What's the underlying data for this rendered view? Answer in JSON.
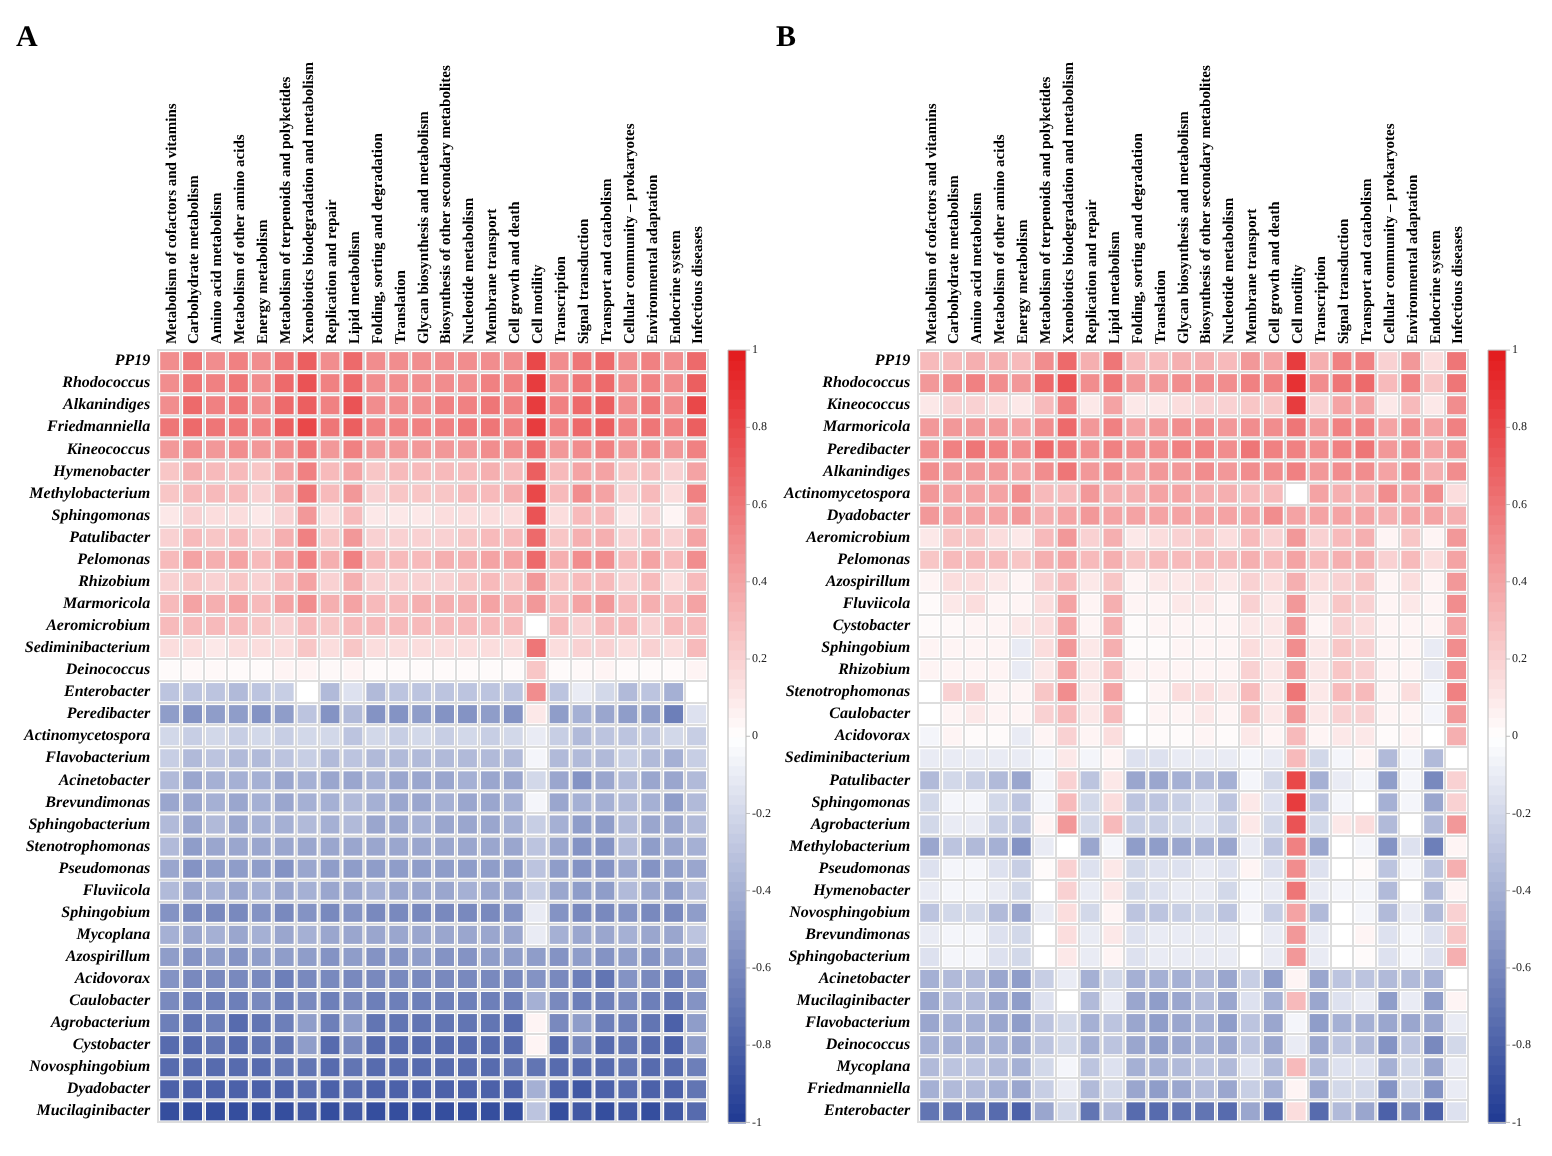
{
  "chart_data": [
    {
      "type": "heatmap",
      "title": "A",
      "clim": [
        -1,
        1
      ],
      "cticks": [
        1,
        0.8,
        0.6,
        0.4,
        0.2,
        0,
        -0.2,
        -0.4,
        -0.6,
        -0.8,
        -1
      ],
      "categories": [
        "Metabolism of cofactors and vitamins",
        "Carbohydrate metabolism",
        "Amino acid metabolism",
        "Metabolism of other amino acids",
        "Energy metabolism",
        "Metabolism of terpenoids and polyketides",
        "Xenobiotics biodegradation and metabolism",
        "Replication and repair",
        "Lipid metabolism",
        "Folding, sorting and degradation",
        "Translation",
        "Glycan biosynthesis and metabolism",
        "Biosynthesis of other secondary metabolites",
        "Nucleotide metabolism",
        "Membrane transport",
        "Cell growth and death",
        "Cell motility",
        "Transcription",
        "Signal transduction",
        "Transport and catabolism",
        "Cellular community – prokaryotes",
        "Environmental adaptation",
        "Endocrine system",
        "Infectious diseases"
      ],
      "y_categories": [
        "PP19",
        "Rhodococcus",
        "Alkanindiges",
        "Friedmanniella",
        "Kineococcus",
        "Hymenobacter",
        "Methylobacterium",
        "Sphingomonas",
        "Patulibacter",
        "Pelomonas",
        "Rhizobium",
        "Marmoricola",
        "Aeromicrobium",
        "Sediminibacterium",
        "Deinococcus",
        "Enterobacter",
        "Peredibacter",
        "Actinomycetospora",
        "Flavobacterium",
        "Acinetobacter",
        "Brevundimonas",
        "Sphingobacterium",
        "Stenotrophomonas",
        "Pseudomonas",
        "Fluviicola",
        "Sphingobium",
        "Mycoplana",
        "Azospirillum",
        "Acidovorax",
        "Caulobacter",
        "Agrobacterium",
        "Cystobacter",
        "Novosphingobium",
        "Dyadobacter",
        "Mucilaginibacter"
      ],
      "cells": [
        [
          0.5,
          0.6,
          0.5,
          0.55,
          0.5,
          0.6,
          0.7,
          0.5,
          0.65,
          0.5,
          0.5,
          0.5,
          0.5,
          0.5,
          0.5,
          0.5,
          0.8,
          0.5,
          0.6,
          0.65,
          0.5,
          0.55,
          0.5,
          0.65
        ],
        [
          0.5,
          0.6,
          0.55,
          0.6,
          0.5,
          0.65,
          0.75,
          0.55,
          0.65,
          0.5,
          0.5,
          0.5,
          0.5,
          0.5,
          0.55,
          0.55,
          0.85,
          0.5,
          0.6,
          0.65,
          0.5,
          0.55,
          0.5,
          0.7
        ],
        [
          0.5,
          0.65,
          0.55,
          0.6,
          0.5,
          0.65,
          0.7,
          0.55,
          0.75,
          0.5,
          0.5,
          0.5,
          0.55,
          0.55,
          0.6,
          0.55,
          0.85,
          0.55,
          0.65,
          0.7,
          0.5,
          0.6,
          0.5,
          0.8
        ],
        [
          0.6,
          0.65,
          0.6,
          0.6,
          0.55,
          0.7,
          0.8,
          0.6,
          0.7,
          0.55,
          0.55,
          0.55,
          0.55,
          0.6,
          0.6,
          0.55,
          0.85,
          0.55,
          0.65,
          0.7,
          0.55,
          0.6,
          0.55,
          0.7
        ],
        [
          0.45,
          0.5,
          0.45,
          0.5,
          0.45,
          0.5,
          0.6,
          0.45,
          0.55,
          0.45,
          0.45,
          0.45,
          0.45,
          0.45,
          0.5,
          0.5,
          0.65,
          0.45,
          0.5,
          0.55,
          0.45,
          0.5,
          0.45,
          0.55
        ],
        [
          0.25,
          0.35,
          0.3,
          0.3,
          0.25,
          0.4,
          0.55,
          0.3,
          0.4,
          0.25,
          0.3,
          0.3,
          0.3,
          0.3,
          0.35,
          0.3,
          0.7,
          0.3,
          0.4,
          0.4,
          0.25,
          0.3,
          0.2,
          0.4
        ],
        [
          0.25,
          0.3,
          0.3,
          0.3,
          0.2,
          0.35,
          0.6,
          0.3,
          0.45,
          0.2,
          0.25,
          0.25,
          0.25,
          0.3,
          0.3,
          0.35,
          0.8,
          0.3,
          0.5,
          0.4,
          0.2,
          0.3,
          0.15,
          0.55
        ],
        [
          0.1,
          0.2,
          0.15,
          0.15,
          0.1,
          0.2,
          0.45,
          0.15,
          0.3,
          0.1,
          0.1,
          0.1,
          0.15,
          0.15,
          0.15,
          0.15,
          0.75,
          0.15,
          0.3,
          0.3,
          0.1,
          0.2,
          0.05,
          0.35
        ],
        [
          0.2,
          0.3,
          0.25,
          0.3,
          0.2,
          0.35,
          0.55,
          0.25,
          0.45,
          0.2,
          0.2,
          0.2,
          0.2,
          0.25,
          0.3,
          0.3,
          0.65,
          0.25,
          0.35,
          0.35,
          0.2,
          0.3,
          0.2,
          0.4
        ],
        [
          0.3,
          0.4,
          0.35,
          0.4,
          0.3,
          0.4,
          0.55,
          0.35,
          0.55,
          0.3,
          0.3,
          0.3,
          0.35,
          0.35,
          0.4,
          0.4,
          0.65,
          0.35,
          0.5,
          0.5,
          0.3,
          0.4,
          0.3,
          0.5
        ],
        [
          0.2,
          0.25,
          0.2,
          0.25,
          0.2,
          0.3,
          0.4,
          0.2,
          0.35,
          0.2,
          0.2,
          0.2,
          0.2,
          0.25,
          0.3,
          0.25,
          0.45,
          0.25,
          0.3,
          0.3,
          0.2,
          0.3,
          0.15,
          0.3
        ],
        [
          0.3,
          0.4,
          0.35,
          0.4,
          0.3,
          0.4,
          0.5,
          0.35,
          0.4,
          0.3,
          0.3,
          0.35,
          0.35,
          0.35,
          0.4,
          0.35,
          0.45,
          0.3,
          0.4,
          0.45,
          0.3,
          0.35,
          0.3,
          0.4
        ],
        [
          0.3,
          0.3,
          0.3,
          0.3,
          0.25,
          0.2,
          0.3,
          0.25,
          0.3,
          0.3,
          0.3,
          0.3,
          0.3,
          0.3,
          0.3,
          0.3,
          0,
          0.3,
          0.2,
          0.3,
          0.3,
          0.2,
          0.3,
          0.3
        ],
        [
          0.15,
          0.15,
          0.1,
          0.15,
          0.15,
          0.15,
          0.25,
          0.15,
          0.25,
          0.15,
          0.15,
          0.15,
          0.15,
          0.15,
          0.15,
          0.15,
          0.6,
          0.15,
          0.2,
          0.2,
          0.15,
          0.2,
          0.15,
          0.3
        ],
        [
          0.02,
          0.03,
          0.03,
          0.02,
          0.02,
          0.05,
          0.05,
          0.03,
          0.05,
          0.02,
          0.02,
          0.02,
          0.02,
          0.02,
          0.02,
          0.02,
          0.25,
          0.02,
          0.03,
          0.05,
          0.02,
          0.02,
          0.02,
          0.05
        ],
        [
          -0.3,
          -0.3,
          -0.3,
          -0.35,
          -0.3,
          -0.25,
          0,
          -0.35,
          -0.15,
          -0.35,
          -0.3,
          -0.3,
          -0.3,
          -0.3,
          -0.3,
          -0.3,
          0.5,
          -0.3,
          -0.1,
          -0.2,
          -0.35,
          -0.3,
          -0.4,
          0
        ],
        [
          -0.5,
          -0.55,
          -0.5,
          -0.5,
          -0.55,
          -0.5,
          -0.3,
          -0.55,
          -0.35,
          -0.55,
          -0.55,
          -0.5,
          -0.55,
          -0.55,
          -0.5,
          -0.55,
          0.1,
          -0.5,
          -0.4,
          -0.45,
          -0.5,
          -0.5,
          -0.65,
          -0.15
        ],
        [
          -0.2,
          -0.25,
          -0.2,
          -0.25,
          -0.2,
          -0.25,
          -0.2,
          -0.2,
          -0.3,
          -0.2,
          -0.25,
          -0.2,
          -0.25,
          -0.2,
          -0.25,
          -0.2,
          -0.1,
          -0.25,
          -0.35,
          -0.3,
          -0.3,
          -0.3,
          -0.2,
          -0.25
        ],
        [
          -0.25,
          -0.35,
          -0.3,
          -0.35,
          -0.35,
          -0.3,
          -0.25,
          -0.35,
          -0.3,
          -0.35,
          -0.35,
          -0.35,
          -0.35,
          -0.35,
          -0.35,
          -0.35,
          -0.05,
          -0.35,
          -0.35,
          -0.35,
          -0.25,
          -0.35,
          -0.4,
          -0.25
        ],
        [
          -0.35,
          -0.45,
          -0.4,
          -0.4,
          -0.4,
          -0.45,
          -0.4,
          -0.45,
          -0.45,
          -0.4,
          -0.45,
          -0.45,
          -0.45,
          -0.4,
          -0.45,
          -0.45,
          -0.2,
          -0.45,
          -0.55,
          -0.45,
          -0.35,
          -0.45,
          -0.45,
          -0.35
        ],
        [
          -0.45,
          -0.45,
          -0.4,
          -0.45,
          -0.4,
          -0.45,
          -0.4,
          -0.4,
          -0.35,
          -0.4,
          -0.45,
          -0.45,
          -0.4,
          -0.45,
          -0.45,
          -0.4,
          -0.05,
          -0.45,
          -0.4,
          -0.4,
          -0.35,
          -0.4,
          -0.5,
          -0.35
        ],
        [
          -0.35,
          -0.45,
          -0.35,
          -0.45,
          -0.4,
          -0.4,
          -0.35,
          -0.4,
          -0.35,
          -0.45,
          -0.45,
          -0.4,
          -0.45,
          -0.45,
          -0.45,
          -0.4,
          -0.25,
          -0.4,
          -0.5,
          -0.5,
          -0.35,
          -0.45,
          -0.45,
          -0.35
        ],
        [
          -0.35,
          -0.5,
          -0.45,
          -0.45,
          -0.45,
          -0.45,
          -0.45,
          -0.45,
          -0.45,
          -0.45,
          -0.45,
          -0.45,
          -0.45,
          -0.45,
          -0.45,
          -0.45,
          -0.3,
          -0.45,
          -0.55,
          -0.55,
          -0.35,
          -0.5,
          -0.45,
          -0.4
        ],
        [
          -0.45,
          -0.55,
          -0.5,
          -0.5,
          -0.5,
          -0.55,
          -0.45,
          -0.5,
          -0.5,
          -0.5,
          -0.5,
          -0.5,
          -0.5,
          -0.5,
          -0.5,
          -0.5,
          -0.3,
          -0.5,
          -0.55,
          -0.55,
          -0.45,
          -0.55,
          -0.5,
          -0.45
        ],
        [
          -0.35,
          -0.45,
          -0.4,
          -0.45,
          -0.4,
          -0.45,
          -0.4,
          -0.45,
          -0.45,
          -0.4,
          -0.45,
          -0.45,
          -0.45,
          -0.4,
          -0.45,
          -0.45,
          -0.25,
          -0.45,
          -0.5,
          -0.5,
          -0.35,
          -0.45,
          -0.5,
          -0.35
        ],
        [
          -0.55,
          -0.6,
          -0.6,
          -0.6,
          -0.55,
          -0.6,
          -0.55,
          -0.6,
          -0.55,
          -0.6,
          -0.6,
          -0.6,
          -0.6,
          -0.6,
          -0.6,
          -0.55,
          -0.1,
          -0.55,
          -0.6,
          -0.6,
          -0.55,
          -0.6,
          -0.6,
          -0.5
        ],
        [
          -0.4,
          -0.45,
          -0.4,
          -0.45,
          -0.4,
          -0.45,
          -0.4,
          -0.45,
          -0.45,
          -0.45,
          -0.45,
          -0.45,
          -0.45,
          -0.45,
          -0.45,
          -0.45,
          -0.1,
          -0.4,
          -0.45,
          -0.45,
          -0.4,
          -0.45,
          -0.45,
          -0.3
        ],
        [
          -0.5,
          -0.55,
          -0.5,
          -0.55,
          -0.5,
          -0.5,
          -0.5,
          -0.55,
          -0.5,
          -0.55,
          -0.55,
          -0.5,
          -0.55,
          -0.55,
          -0.5,
          -0.5,
          -0.5,
          -0.55,
          -0.5,
          -0.55,
          -0.5,
          -0.55,
          -0.5,
          -0.45
        ],
        [
          -0.55,
          -0.6,
          -0.6,
          -0.6,
          -0.6,
          -0.65,
          -0.6,
          -0.6,
          -0.6,
          -0.6,
          -0.6,
          -0.6,
          -0.6,
          -0.6,
          -0.6,
          -0.6,
          -0.55,
          -0.6,
          -0.65,
          -0.7,
          -0.55,
          -0.6,
          -0.65,
          -0.55
        ],
        [
          -0.6,
          -0.65,
          -0.65,
          -0.65,
          -0.6,
          -0.65,
          -0.6,
          -0.65,
          -0.6,
          -0.65,
          -0.65,
          -0.65,
          -0.65,
          -0.65,
          -0.65,
          -0.65,
          -0.4,
          -0.6,
          -0.65,
          -0.65,
          -0.6,
          -0.65,
          -0.7,
          -0.55
        ],
        [
          -0.65,
          -0.7,
          -0.65,
          -0.75,
          -0.7,
          -0.65,
          -0.5,
          -0.65,
          -0.5,
          -0.7,
          -0.7,
          -0.7,
          -0.7,
          -0.7,
          -0.7,
          -0.75,
          0.05,
          -0.6,
          -0.5,
          -0.65,
          -0.65,
          -0.7,
          -0.8,
          -0.5
        ],
        [
          -0.75,
          -0.75,
          -0.7,
          -0.75,
          -0.7,
          -0.7,
          -0.5,
          -0.75,
          -0.6,
          -0.75,
          -0.75,
          -0.75,
          -0.75,
          -0.75,
          -0.75,
          -0.75,
          0.05,
          -0.75,
          -0.6,
          -0.75,
          -0.7,
          -0.75,
          -0.8,
          -0.5
        ],
        [
          -0.75,
          -0.75,
          -0.75,
          -0.75,
          -0.75,
          -0.7,
          -0.7,
          -0.75,
          -0.7,
          -0.75,
          -0.75,
          -0.75,
          -0.75,
          -0.75,
          -0.75,
          -0.7,
          -0.7,
          -0.75,
          -0.75,
          -0.75,
          -0.7,
          -0.75,
          -0.75,
          -0.65
        ],
        [
          -0.8,
          -0.8,
          -0.8,
          -0.8,
          -0.8,
          -0.8,
          -0.75,
          -0.8,
          -0.75,
          -0.8,
          -0.8,
          -0.8,
          -0.8,
          -0.8,
          -0.8,
          -0.8,
          -0.4,
          -0.8,
          -0.85,
          -0.8,
          -0.75,
          -0.8,
          -0.8,
          -0.7
        ],
        [
          -0.9,
          -0.9,
          -0.9,
          -0.9,
          -0.9,
          -0.9,
          -0.85,
          -0.9,
          -0.85,
          -0.9,
          -0.9,
          -0.9,
          -0.9,
          -0.9,
          -0.9,
          -0.9,
          -0.3,
          -0.9,
          -0.85,
          -0.9,
          -0.85,
          -0.9,
          -0.85,
          -0.75
        ]
      ]
    },
    {
      "type": "heatmap",
      "title": "B",
      "clim": [
        -1,
        1
      ],
      "cticks": [
        1,
        0.8,
        0.6,
        0.4,
        0.2,
        0,
        -0.2,
        -0.4,
        -0.6,
        -0.8,
        -1
      ],
      "categories": [
        "Metabolism of cofactors and vitamins",
        "Carbohydrate metabolism",
        "Amino acid metabolism",
        "Metabolism of other amino acids",
        "Energy metabolism",
        "Metabolism of terpenoids and polyketides",
        "Xenobiotics biodegradation and metabolism",
        "Replication and repair",
        "Lipid metabolism",
        "Folding, sorting and degradation",
        "Translation",
        "Glycan biosynthesis and metabolism",
        "Biosynthesis of other secondary metabolites",
        "Nucleotide metabolism",
        "Membrane transport",
        "Cell growth and death",
        "Cell motility",
        "Transcription",
        "Signal transduction",
        "Transport and catabolism",
        "Cellular community – prokaryotes",
        "Environmental adaptation",
        "Endocrine system",
        "Infectious diseases"
      ],
      "y_categories": [
        "PP19",
        "Rhodococcus",
        "Kineococcus",
        "Marmoricola",
        "Peredibacter",
        "Alkanindiges",
        "Actinomycetospora",
        "Dyadobacter",
        "Aeromicrobium",
        "Pelomonas",
        "Azospirillum",
        "Fluviicola",
        "Cystobacter",
        "Sphingobium",
        "Rhizobium",
        "Stenotrophomonas",
        "Caulobacter",
        "Acidovorax",
        "Sediminibacterium",
        "Patulibacter",
        "Sphingomonas",
        "Agrobacterium",
        "Methylobacterium",
        "Pseudomonas",
        "Hymenobacter",
        "Novosphingobium",
        "Brevundimonas",
        "Sphingobacterium",
        "Acinetobacter",
        "Mucilaginibacter",
        "Flavobacterium",
        "Deinococcus",
        "Mycoplana",
        "Friedmanniella",
        "Enterobacter"
      ],
      "cells": [
        [
          0.3,
          0.3,
          0.35,
          0.35,
          0.3,
          0.5,
          0.65,
          0.35,
          0.6,
          0.3,
          0.3,
          0.35,
          0.35,
          0.3,
          0.45,
          0.4,
          0.85,
          0.35,
          0.55,
          0.55,
          0.2,
          0.45,
          0.15,
          0.6
        ],
        [
          0.45,
          0.5,
          0.55,
          0.5,
          0.45,
          0.65,
          0.75,
          0.5,
          0.6,
          0.45,
          0.45,
          0.5,
          0.5,
          0.5,
          0.55,
          0.55,
          0.9,
          0.5,
          0.6,
          0.65,
          0.3,
          0.55,
          0.25,
          0.6
        ],
        [
          0.1,
          0.2,
          0.2,
          0.15,
          0.1,
          0.3,
          0.55,
          0.1,
          0.4,
          0.1,
          0.1,
          0.15,
          0.2,
          0.2,
          0.25,
          0.25,
          0.85,
          0.2,
          0.4,
          0.4,
          0.1,
          0.3,
          0.1,
          0.5
        ],
        [
          0.45,
          0.45,
          0.45,
          0.45,
          0.4,
          0.5,
          0.65,
          0.45,
          0.55,
          0.4,
          0.45,
          0.5,
          0.5,
          0.45,
          0.5,
          0.5,
          0.6,
          0.45,
          0.55,
          0.55,
          0.4,
          0.5,
          0.4,
          0.55
        ],
        [
          0.5,
          0.55,
          0.6,
          0.55,
          0.5,
          0.65,
          0.6,
          0.5,
          0.55,
          0.5,
          0.5,
          0.55,
          0.55,
          0.5,
          0.6,
          0.55,
          0.55,
          0.5,
          0.55,
          0.6,
          0.45,
          0.5,
          0.4,
          0.5
        ],
        [
          0.5,
          0.45,
          0.45,
          0.45,
          0.4,
          0.5,
          0.6,
          0.45,
          0.5,
          0.4,
          0.45,
          0.45,
          0.5,
          0.45,
          0.5,
          0.5,
          0.55,
          0.45,
          0.5,
          0.5,
          0.4,
          0.5,
          0.35,
          0.5
        ],
        [
          0.45,
          0.4,
          0.4,
          0.4,
          0.5,
          0.3,
          0.3,
          0.45,
          0.35,
          0.35,
          0.4,
          0.4,
          0.35,
          0.35,
          0.3,
          0.3,
          0,
          0.4,
          0.35,
          0.35,
          0.5,
          0.4,
          0.5,
          0.15
        ],
        [
          0.45,
          0.4,
          0.4,
          0.4,
          0.45,
          0.35,
          0.4,
          0.45,
          0.4,
          0.4,
          0.4,
          0.4,
          0.4,
          0.4,
          0.4,
          0.5,
          0.4,
          0.4,
          0.4,
          0.4,
          0.35,
          0.4,
          0.4,
          0.35
        ],
        [
          0.1,
          0.25,
          0.25,
          0.15,
          0.1,
          0.3,
          0.45,
          0.2,
          0.35,
          0.1,
          0.15,
          0.2,
          0.25,
          0.15,
          0.3,
          0.2,
          0.45,
          0.2,
          0.3,
          0.35,
          0.05,
          0.25,
          0.05,
          0.45
        ],
        [
          0.25,
          0.3,
          0.3,
          0.3,
          0.25,
          0.35,
          0.4,
          0.3,
          0.35,
          0.25,
          0.3,
          0.3,
          0.3,
          0.3,
          0.35,
          0.3,
          0.4,
          0.3,
          0.35,
          0.35,
          0.2,
          0.3,
          0.15,
          0.4
        ],
        [
          0.05,
          0.15,
          0.15,
          0.1,
          0.05,
          0.2,
          0.3,
          0.1,
          0.25,
          0.05,
          0.1,
          0.1,
          0.15,
          0.1,
          0.2,
          0.15,
          0.35,
          0.15,
          0.2,
          0.25,
          0.05,
          0.15,
          0.05,
          0.45
        ],
        [
          0.02,
          0.1,
          0.15,
          0.05,
          0.05,
          0.15,
          0.4,
          0.05,
          0.35,
          0.05,
          0.05,
          0.1,
          0.1,
          0.05,
          0.2,
          0.1,
          0.45,
          0.1,
          0.25,
          0.2,
          0.05,
          0.1,
          0.05,
          0.5
        ],
        [
          0.02,
          0.03,
          0.05,
          0.05,
          0.1,
          0.15,
          0.4,
          0.05,
          0.35,
          0.02,
          0.05,
          0.05,
          0.05,
          0.05,
          0.1,
          0.1,
          0.45,
          0.05,
          0.2,
          0.15,
          0.05,
          0.05,
          0.05,
          0.4
        ],
        [
          0.05,
          0.05,
          0.05,
          0.05,
          -0.1,
          0.15,
          0.45,
          0.1,
          0.35,
          0.02,
          0.02,
          0.05,
          0.05,
          0.05,
          0.15,
          0.1,
          0.5,
          0.1,
          0.25,
          0.2,
          0.05,
          0.05,
          -0.1,
          0.5
        ],
        [
          0.05,
          0.05,
          0.05,
          0.05,
          -0.1,
          0.1,
          0.4,
          0.1,
          0.3,
          0.05,
          0.05,
          0.05,
          0.05,
          0.05,
          0.2,
          0.1,
          0.45,
          0.1,
          0.25,
          0.2,
          0.05,
          0.05,
          -0.1,
          0.5
        ],
        [
          0,
          0.2,
          0.2,
          0.05,
          0.05,
          0.25,
          0.5,
          0.1,
          0.4,
          0,
          0.05,
          0.15,
          0.15,
          0.1,
          0.3,
          0.1,
          0.6,
          0.1,
          0.3,
          0.3,
          0.05,
          0.15,
          -0.05,
          0.55
        ],
        [
          0,
          0.05,
          0.1,
          0.05,
          0.05,
          0.2,
          0.3,
          0.1,
          0.3,
          0,
          0.05,
          0.05,
          0.1,
          0.05,
          0.25,
          0.1,
          0.45,
          0.1,
          0.2,
          0.2,
          0.05,
          0.05,
          -0.05,
          0.45
        ],
        [
          -0.05,
          0.05,
          0.02,
          0.02,
          -0.1,
          0.05,
          0.2,
          0.05,
          0.15,
          0,
          0.02,
          0.02,
          0.05,
          0.02,
          0.1,
          0.05,
          0.3,
          0.05,
          0.1,
          0.1,
          0.02,
          0.05,
          0,
          0.35
        ],
        [
          -0.1,
          -0.1,
          -0.1,
          -0.1,
          -0.1,
          -0.05,
          0.1,
          -0.05,
          0.05,
          -0.15,
          -0.15,
          -0.1,
          -0.1,
          -0.1,
          -0.05,
          -0.1,
          0.3,
          -0.2,
          -0.05,
          0.05,
          -0.35,
          -0.05,
          -0.35,
          0
        ],
        [
          -0.35,
          -0.2,
          -0.25,
          -0.35,
          -0.45,
          -0.05,
          0.2,
          -0.3,
          0.1,
          -0.45,
          -0.45,
          -0.4,
          -0.35,
          -0.4,
          -0.05,
          -0.2,
          0.8,
          -0.4,
          -0.1,
          -0.05,
          -0.5,
          -0.05,
          -0.6,
          0.2
        ],
        [
          -0.2,
          -0.05,
          -0.05,
          -0.2,
          -0.3,
          -0.05,
          0.3,
          -0.2,
          0.15,
          -0.3,
          -0.3,
          -0.25,
          -0.15,
          -0.3,
          0.1,
          -0.15,
          0.85,
          -0.3,
          -0.05,
          0,
          -0.4,
          -0.05,
          -0.45,
          0.2
        ],
        [
          -0.2,
          -0.1,
          -0.1,
          -0.25,
          -0.3,
          0.05,
          0.45,
          -0.2,
          0.3,
          -0.25,
          -0.25,
          -0.2,
          -0.15,
          -0.25,
          0.1,
          -0.2,
          0.75,
          -0.2,
          0.1,
          0.15,
          -0.35,
          0,
          -0.35,
          0.45
        ],
        [
          -0.45,
          -0.3,
          -0.35,
          -0.4,
          -0.55,
          -0.1,
          0,
          -0.45,
          -0.05,
          -0.5,
          -0.5,
          -0.45,
          -0.4,
          -0.45,
          -0.1,
          -0.3,
          0.55,
          -0.45,
          0,
          -0.05,
          -0.55,
          -0.15,
          -0.65,
          0.05
        ],
        [
          -0.15,
          -0.05,
          -0.05,
          -0.15,
          -0.25,
          0.02,
          0.2,
          -0.15,
          0.1,
          -0.2,
          -0.15,
          -0.15,
          -0.1,
          -0.15,
          0.05,
          -0.15,
          0.5,
          -0.15,
          0,
          0.02,
          -0.3,
          -0.05,
          -0.3,
          0.35
        ],
        [
          -0.1,
          -0.05,
          -0.05,
          -0.1,
          -0.2,
          0,
          0.2,
          -0.1,
          0.1,
          -0.2,
          -0.15,
          -0.1,
          -0.1,
          -0.2,
          -0.05,
          -0.1,
          0.6,
          -0.1,
          -0.05,
          -0.05,
          -0.35,
          0,
          -0.35,
          0.05
        ],
        [
          -0.3,
          -0.2,
          -0.2,
          -0.35,
          -0.45,
          -0.1,
          0.15,
          -0.2,
          0.05,
          -0.3,
          -0.3,
          -0.25,
          -0.2,
          -0.3,
          -0.05,
          -0.25,
          0.4,
          -0.35,
          0,
          -0.05,
          -0.35,
          -0.1,
          -0.35,
          0.2
        ],
        [
          -0.1,
          -0.05,
          -0.05,
          -0.15,
          -0.2,
          0,
          0.15,
          -0.1,
          0.1,
          -0.15,
          -0.1,
          -0.1,
          -0.1,
          -0.1,
          0,
          -0.1,
          0.45,
          -0.1,
          0,
          0.05,
          -0.15,
          -0.05,
          -0.15,
          0.25
        ],
        [
          -0.15,
          -0.05,
          -0.05,
          -0.15,
          -0.2,
          0,
          0.1,
          -0.1,
          0.05,
          -0.15,
          -0.1,
          -0.1,
          -0.1,
          -0.1,
          0,
          -0.1,
          0.45,
          -0.1,
          0,
          0.02,
          -0.15,
          -0.05,
          -0.15,
          0.35
        ],
        [
          -0.4,
          -0.35,
          -0.35,
          -0.45,
          -0.5,
          -0.25,
          -0.1,
          -0.4,
          -0.2,
          -0.4,
          -0.4,
          -0.4,
          -0.35,
          -0.45,
          -0.25,
          -0.5,
          0.05,
          -0.45,
          -0.3,
          -0.3,
          -0.35,
          -0.35,
          -0.4,
          0
        ],
        [
          -0.45,
          -0.35,
          -0.35,
          -0.45,
          -0.5,
          -0.15,
          0,
          -0.35,
          -0.1,
          -0.45,
          -0.5,
          -0.45,
          -0.35,
          -0.45,
          -0.15,
          -0.4,
          0.3,
          -0.45,
          -0.15,
          -0.1,
          -0.5,
          -0.1,
          -0.5,
          0.05
        ],
        [
          -0.45,
          -0.4,
          -0.4,
          -0.45,
          -0.5,
          -0.3,
          -0.2,
          -0.4,
          -0.3,
          -0.45,
          -0.5,
          -0.45,
          -0.4,
          -0.5,
          -0.3,
          -0.45,
          -0.05,
          -0.5,
          -0.4,
          -0.4,
          -0.45,
          -0.45,
          -0.45,
          -0.1
        ],
        [
          -0.4,
          -0.4,
          -0.4,
          -0.4,
          -0.45,
          -0.3,
          -0.2,
          -0.4,
          -0.3,
          -0.45,
          -0.5,
          -0.45,
          -0.4,
          -0.45,
          -0.3,
          -0.45,
          -0.1,
          -0.45,
          -0.3,
          -0.35,
          -0.55,
          -0.3,
          -0.6,
          -0.2
        ],
        [
          -0.35,
          -0.3,
          -0.3,
          -0.35,
          -0.4,
          -0.2,
          -0.05,
          -0.3,
          -0.15,
          -0.4,
          -0.4,
          -0.35,
          -0.3,
          -0.35,
          -0.15,
          -0.35,
          0.3,
          -0.35,
          -0.15,
          -0.15,
          -0.4,
          -0.2,
          -0.45,
          -0.1
        ],
        [
          -0.4,
          -0.35,
          -0.35,
          -0.4,
          -0.45,
          -0.25,
          -0.1,
          -0.35,
          -0.2,
          -0.45,
          -0.5,
          -0.45,
          -0.35,
          -0.45,
          -0.25,
          -0.4,
          0.05,
          -0.45,
          -0.2,
          -0.2,
          -0.55,
          -0.2,
          -0.55,
          -0.1
        ],
        [
          -0.7,
          -0.7,
          -0.7,
          -0.75,
          -0.8,
          -0.45,
          -0.2,
          -0.7,
          -0.35,
          -0.75,
          -0.75,
          -0.7,
          -0.7,
          -0.75,
          -0.45,
          -0.75,
          0.15,
          -0.75,
          -0.35,
          -0.45,
          -0.8,
          -0.6,
          -0.8,
          -0.15
        ]
      ]
    }
  ]
}
